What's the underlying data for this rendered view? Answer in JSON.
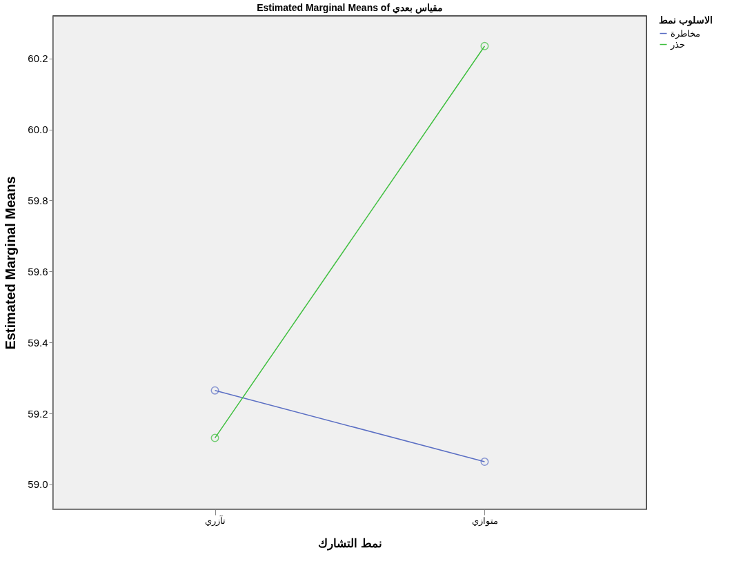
{
  "chart_data": {
    "type": "line",
    "title": "Estimated Marginal Means of مقياس بعدي",
    "xlabel": "نمط التشارك",
    "ylabel": "Estimated Marginal Means",
    "legend_title": "الاسلوب نمط",
    "categories": [
      "تآزري",
      "متوازي"
    ],
    "series": [
      {
        "name": "مخاطرة",
        "color": "#5b6fc4",
        "values": [
          59.265,
          59.064
        ]
      },
      {
        "name": "حذر",
        "color": "#3fbf3f",
        "values": [
          59.131,
          60.235
        ]
      }
    ],
    "ylim": [
      58.93,
      60.32
    ],
    "yticks": [
      {
        "value": 59,
        "label": "59.0"
      },
      59.2,
      59.4,
      59.6,
      59.8,
      {
        "value": 60,
        "label": "60.0"
      },
      60.2
    ],
    "grid": false,
    "legend": "top right",
    "marker": "circle",
    "line_style": "solid"
  }
}
